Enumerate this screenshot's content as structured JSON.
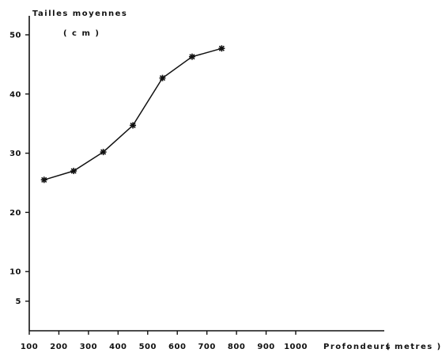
{
  "chart_data": {
    "type": "line",
    "title": "Tailles moyennes",
    "ylabel_unit": "( c m )",
    "xlabel": "Profondeurs",
    "xlabel_unit": "( metres )",
    "x": [
      150,
      250,
      350,
      450,
      550,
      650,
      750
    ],
    "series": [
      {
        "values": [
          25.5,
          27.0,
          30.2,
          34.7,
          42.7,
          46.3,
          47.7
        ]
      }
    ],
    "xlim": [
      100,
      1000
    ],
    "ylim": [
      0,
      50
    ],
    "x_ticks": [
      100,
      200,
      300,
      400,
      500,
      600,
      700,
      800,
      900,
      1000
    ],
    "x_tick_labels": [
      "100",
      "200",
      "300",
      "400",
      "500",
      "600",
      "700",
      "800",
      "900",
      "1000"
    ],
    "y_ticks": [
      5,
      10,
      20,
      30,
      40,
      50
    ],
    "y_tick_labels": [
      "5",
      "10",
      "20",
      "30",
      "40",
      "50"
    ],
    "marker": "asterisk",
    "line_color": "#111111",
    "grid": false,
    "legend": "none"
  }
}
